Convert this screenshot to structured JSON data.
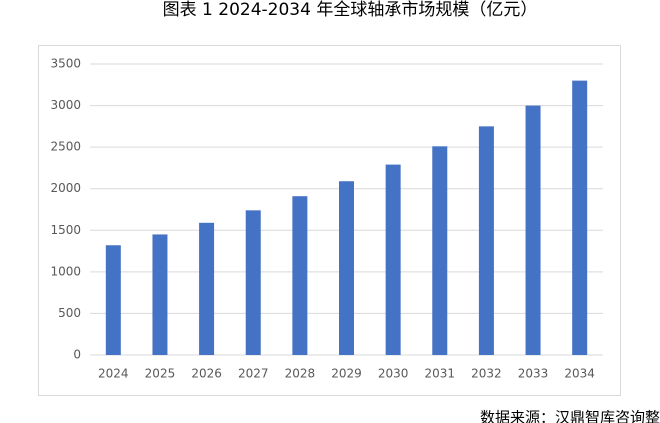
{
  "chart_data": {
    "type": "bar",
    "title": "图表 1 2024-2034 年全球轴承市场规模（亿元）",
    "source": "数据来源：汉鼎智库咨询整",
    "categories": [
      "2024",
      "2025",
      "2026",
      "2027",
      "2028",
      "2029",
      "2030",
      "2031",
      "2032",
      "2033",
      "2034"
    ],
    "values": [
      1320,
      1450,
      1590,
      1740,
      1910,
      2090,
      2290,
      2510,
      2750,
      3000,
      3300
    ],
    "color": "#4472c4",
    "ylim": [
      0,
      3500
    ],
    "yticks": [
      0,
      500,
      1000,
      1500,
      2000,
      2500,
      3000,
      3500
    ],
    "grid": true
  }
}
